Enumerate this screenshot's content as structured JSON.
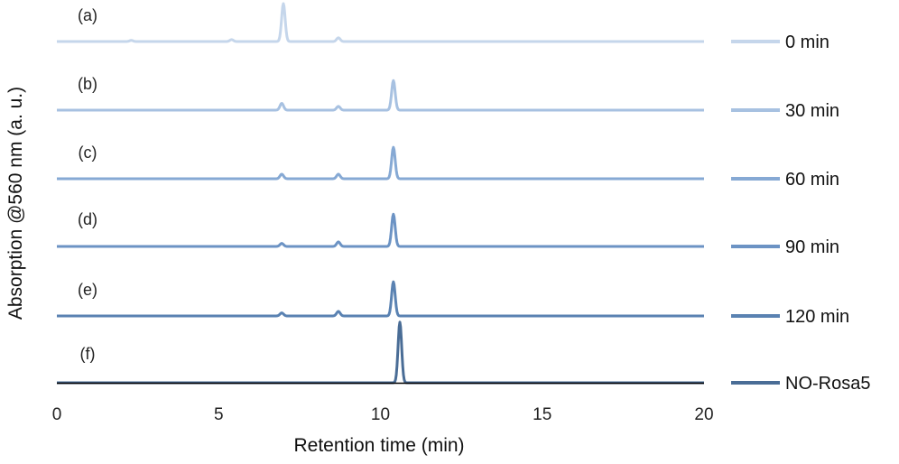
{
  "chart_data": {
    "type": "line",
    "xlabel": "Retention time (min)",
    "ylabel": "Absorption @560 nm (a. u.)",
    "xlim": [
      0,
      20
    ],
    "xticks": [
      0,
      5,
      10,
      15,
      20
    ],
    "grid": false,
    "legend_position": "right",
    "series": [
      {
        "panel": "(a)",
        "name": "0 min",
        "color": "#c5d6eb",
        "peaks": [
          {
            "x": 7.0,
            "height": 1.0
          },
          {
            "x": 8.7,
            "height": 0.1
          },
          {
            "x": 5.4,
            "height": 0.05
          },
          {
            "x": 2.3,
            "height": 0.03
          }
        ]
      },
      {
        "panel": "(b)",
        "name": "30 min",
        "color": "#a7c1e1",
        "peaks": [
          {
            "x": 6.95,
            "height": 0.18
          },
          {
            "x": 8.7,
            "height": 0.1
          },
          {
            "x": 10.4,
            "height": 0.78
          }
        ]
      },
      {
        "panel": "(c)",
        "name": "60 min",
        "color": "#86a9d4",
        "peaks": [
          {
            "x": 6.95,
            "height": 0.12
          },
          {
            "x": 8.7,
            "height": 0.12
          },
          {
            "x": 10.4,
            "height": 0.83
          }
        ]
      },
      {
        "panel": "(d)",
        "name": "90 min",
        "color": "#6c93c4",
        "peaks": [
          {
            "x": 6.95,
            "height": 0.08
          },
          {
            "x": 8.7,
            "height": 0.12
          },
          {
            "x": 10.4,
            "height": 0.85
          }
        ]
      },
      {
        "panel": "(e)",
        "name": "120 min",
        "color": "#5a82b2",
        "peaks": [
          {
            "x": 6.95,
            "height": 0.08
          },
          {
            "x": 8.7,
            "height": 0.12
          },
          {
            "x": 10.4,
            "height": 0.9
          }
        ]
      },
      {
        "panel": "(f)",
        "name": "NO-Rosa5",
        "color": "#4a6d96",
        "peaks": [
          {
            "x": 10.6,
            "height": 1.6
          }
        ]
      }
    ]
  }
}
